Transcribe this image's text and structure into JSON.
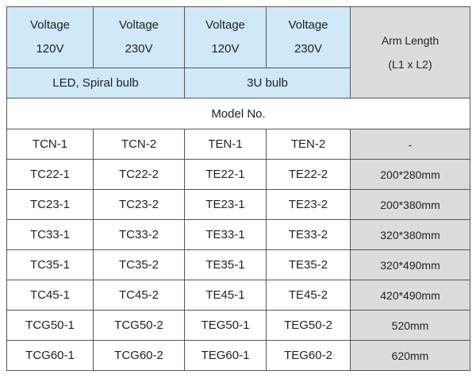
{
  "header": {
    "voltages": [
      {
        "line1": "Voltage",
        "line2": "120V"
      },
      {
        "line1": "Voltage",
        "line2": "230V"
      },
      {
        "line1": "Voltage",
        "line2": "120V"
      },
      {
        "line1": "Voltage",
        "line2": "230V"
      }
    ],
    "arm_length": {
      "line1": "Arm Length",
      "line2": "(L1 x L2)"
    },
    "bulb_types": [
      "LED, Spiral bulb",
      "3U bulb"
    ]
  },
  "model_label": "Model No.",
  "rows": [
    [
      "TCN-1",
      "TCN-2",
      "TEN-1",
      "TEN-2",
      "-"
    ],
    [
      "TC22-1",
      "TC22-2",
      "TE22-1",
      "TE22-2",
      "200*280mm"
    ],
    [
      "TC23-1",
      "TC23-2",
      "TE23-1",
      "TE23-2",
      "200*380mm"
    ],
    [
      "TC33-1",
      "TC33-2",
      "TE33-1",
      "TE33-2",
      "320*380mm"
    ],
    [
      "TC35-1",
      "TC35-2",
      "TE35-1",
      "TE35-2",
      "320*490mm"
    ],
    [
      "TC45-1",
      "TC45-2",
      "TE45-1",
      "TE45-2",
      "420*490mm"
    ],
    [
      "TCG50-1",
      "TCG50-2",
      "TEG50-1",
      "TEG50-2",
      "520mm"
    ],
    [
      "TCG60-1",
      "TCG60-2",
      "TEG60-1",
      "TEG60-2",
      "620mm"
    ]
  ]
}
